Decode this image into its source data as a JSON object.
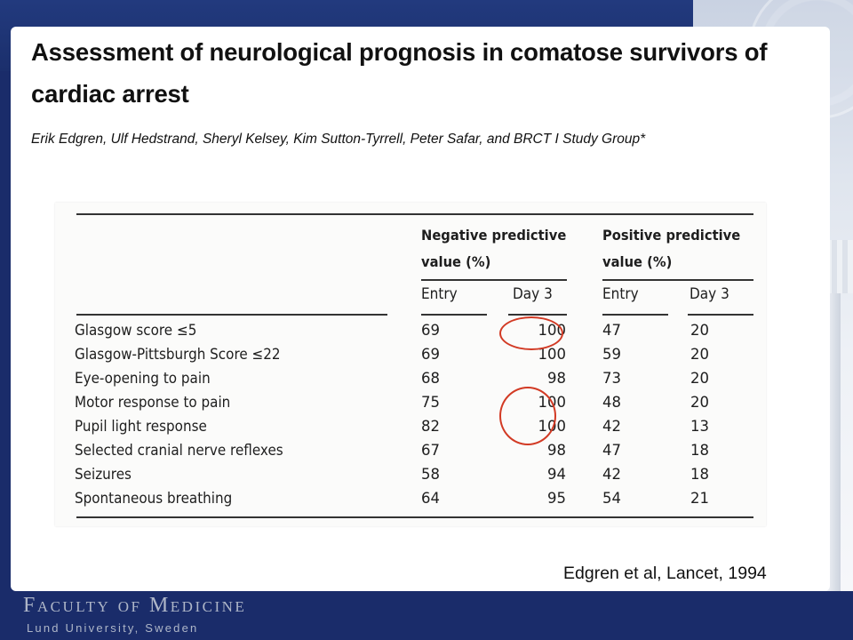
{
  "slide": {
    "title": "Assessment of neurological prognosis in comatose survivors of cardiac arrest",
    "authors": "Erik Edgren, Ulf Hedstrand, Sheryl Kelsey, Kim Sutton-Tyrrell, Peter Safar, and BRCT I Study Group*",
    "citation": "Edgren et al, Lancet, 1994"
  },
  "table": {
    "group_headers": {
      "negative": "Negative predictive value (%)",
      "positive": "Positive predictive value (%)"
    },
    "sub_headers": [
      "Entry",
      "Day 3",
      "Entry",
      "Day 3"
    ],
    "rows": [
      {
        "label": "Glasgow score ≤5",
        "npv_entry": "69",
        "npv_day3": "100",
        "ppv_entry": "47",
        "ppv_day3": "20"
      },
      {
        "label": "Glasgow-Pittsburgh Score ≤22",
        "npv_entry": "69",
        "npv_day3": "100",
        "ppv_entry": "59",
        "ppv_day3": "20"
      },
      {
        "label": "Eye-opening to pain",
        "npv_entry": "68",
        "npv_day3": "98",
        "ppv_entry": "73",
        "ppv_day3": "20"
      },
      {
        "label": "Motor response to pain",
        "npv_entry": "75",
        "npv_day3": "100",
        "ppv_entry": "48",
        "ppv_day3": "20"
      },
      {
        "label": "Pupil light response",
        "npv_entry": "82",
        "npv_day3": "100",
        "ppv_entry": "42",
        "ppv_day3": "13"
      },
      {
        "label": "Selected cranial nerve reflexes",
        "npv_entry": "67",
        "npv_day3": "98",
        "ppv_entry": "47",
        "ppv_day3": "18"
      },
      {
        "label": "Seizures",
        "npv_entry": "58",
        "npv_day3": "94",
        "ppv_entry": "42",
        "ppv_day3": "18"
      },
      {
        "label": "Spontaneous breathing",
        "npv_entry": "64",
        "npv_day3": "95",
        "ppv_entry": "54",
        "ppv_day3": "21"
      }
    ],
    "highlight_color": "#d23a24"
  },
  "footer": {
    "faculty": "Faculty of Medicine",
    "university": "Lund University, Sweden"
  },
  "colors": {
    "background": "#1a2c6a",
    "footer_text": "#aeb6c8"
  }
}
